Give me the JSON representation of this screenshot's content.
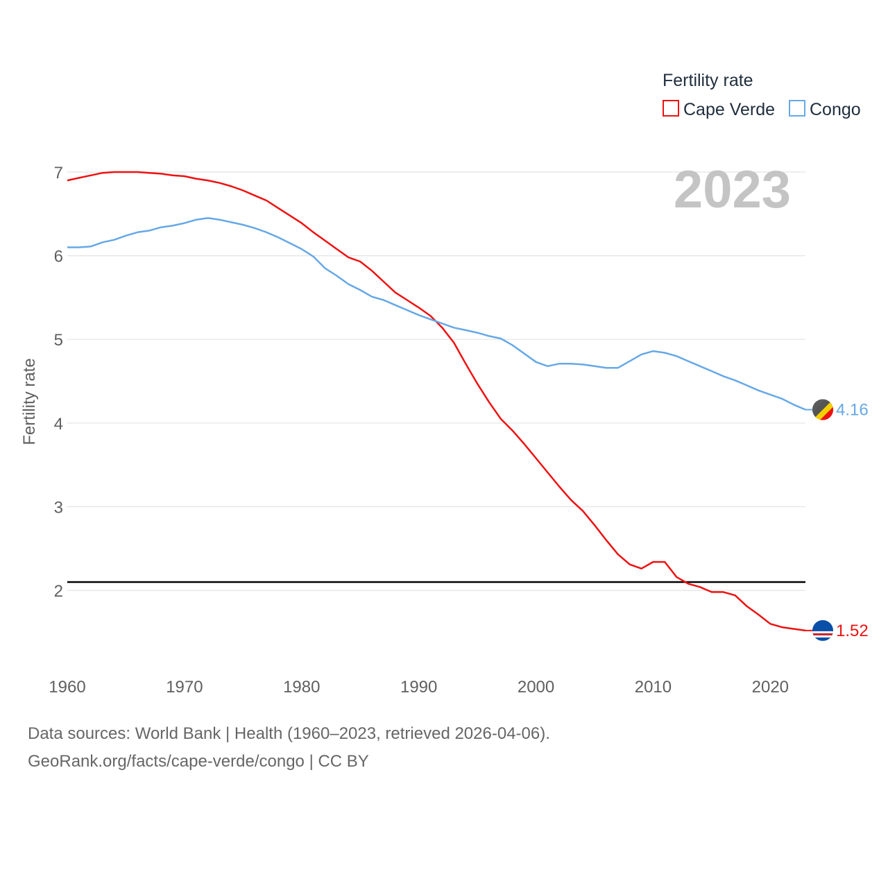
{
  "chart_data": {
    "type": "line",
    "legend_title": "Fertility rate",
    "legend_position": "top-right",
    "ylabel": "Fertility rate",
    "xlabel": "",
    "xlim": [
      1960,
      2023
    ],
    "ylim": [
      1.2,
      7.2
    ],
    "x_ticks": [
      1960,
      1970,
      1980,
      1990,
      2000,
      2010,
      2020
    ],
    "y_ticks": [
      2,
      3,
      4,
      5,
      6,
      7
    ],
    "year_label": "2023",
    "reference_line": {
      "value": 2.1,
      "color": "#000000"
    },
    "grid": true,
    "series": [
      {
        "name": "Cape Verde",
        "color": "#ee1111",
        "end_label": "1.52",
        "values": [
          6.9,
          6.93,
          6.96,
          6.99,
          7.0,
          7.0,
          7.0,
          6.99,
          6.98,
          6.96,
          6.95,
          6.92,
          6.9,
          6.87,
          6.83,
          6.78,
          6.72,
          6.66,
          6.57,
          6.48,
          6.39,
          6.28,
          6.18,
          6.08,
          5.98,
          5.93,
          5.82,
          5.69,
          5.56,
          5.47,
          5.38,
          5.28,
          5.14,
          4.96,
          4.71,
          4.47,
          4.25,
          4.05,
          3.91,
          3.75,
          3.58,
          3.41,
          3.24,
          3.08,
          2.95,
          2.78,
          2.6,
          2.43,
          2.31,
          2.26,
          2.34,
          2.34,
          2.16,
          2.08,
          2.04,
          1.98,
          1.98,
          1.94,
          1.81,
          1.71,
          1.6,
          1.56,
          1.54,
          1.52
        ]
      },
      {
        "name": "Congo",
        "color": "#66a8e6",
        "end_label": "4.16",
        "values": [
          6.1,
          6.1,
          6.11,
          6.16,
          6.19,
          6.24,
          6.28,
          6.3,
          6.34,
          6.36,
          6.39,
          6.43,
          6.45,
          6.43,
          6.4,
          6.37,
          6.33,
          6.28,
          6.22,
          6.15,
          6.08,
          5.99,
          5.85,
          5.76,
          5.66,
          5.59,
          5.51,
          5.47,
          5.41,
          5.35,
          5.29,
          5.24,
          5.19,
          5.14,
          5.11,
          5.08,
          5.04,
          5.01,
          4.93,
          4.83,
          4.73,
          4.68,
          4.71,
          4.71,
          4.7,
          4.68,
          4.66,
          4.66,
          4.74,
          4.82,
          4.86,
          4.84,
          4.8,
          4.74,
          4.68,
          4.62,
          4.56,
          4.51,
          4.45,
          4.39,
          4.34,
          4.29,
          4.22,
          4.16
        ]
      }
    ]
  },
  "footer": {
    "source_line": "Data sources: World Bank | Health (1960–2023, retrieved 2026-04-06).",
    "credit_line": "GeoRank.org/facts/cape-verde/congo | CC BY"
  },
  "flags": {
    "congo": "congo-flag-icon",
    "cape_verde": "cape-verde-flag-icon"
  }
}
